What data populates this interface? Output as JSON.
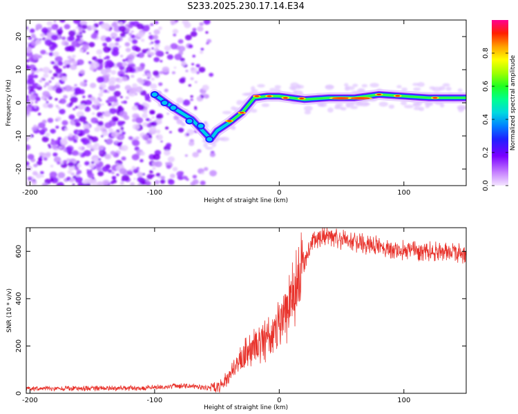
{
  "title": "S233.2025.230.17.14.E34",
  "chart_data": [
    {
      "type": "heatmap",
      "title": "S233.2025.230.17.14.E34",
      "xlabel": "Height of straight line (km)",
      "ylabel": "Frequency (Hz)",
      "xlim": [
        -203,
        150
      ],
      "ylim": [
        -25,
        25
      ],
      "xticks": [
        -200,
        -100,
        0,
        100
      ],
      "yticks": [
        -20,
        -10,
        0,
        10,
        20
      ],
      "colorbar": {
        "label": "Normalized spectral amplitude",
        "range": [
          0,
          1
        ],
        "ticks": [
          0.0,
          0.2,
          0.4,
          0.6,
          0.8
        ]
      },
      "ridge": {
        "description_points_x": [
          -100,
          -85,
          -70,
          -60,
          -55,
          -50,
          -40,
          -30,
          -20,
          -10,
          0,
          20,
          40,
          60,
          80,
          100,
          120,
          150
        ],
        "frequency_hz": [
          2.5,
          -1.5,
          -5,
          -9,
          -11,
          -8.5,
          -6,
          -3,
          1.5,
          2,
          2,
          1,
          1.5,
          1.5,
          2.5,
          2,
          1.5,
          1.5
        ]
      }
    },
    {
      "type": "line",
      "xlabel": "Height of straight line (km)",
      "ylabel": "SNR (10 * v/v)",
      "xlim": [
        -203,
        150
      ],
      "ylim": [
        0,
        700
      ],
      "xticks": [
        -200,
        -100,
        0,
        100
      ],
      "yticks": [
        0,
        200,
        400,
        600
      ],
      "color": "#e8312a",
      "series": [
        {
          "name": "SNR",
          "x": [
            -203,
            -180,
            -160,
            -140,
            -120,
            -100,
            -90,
            -80,
            -70,
            -60,
            -50,
            -45,
            -40,
            -35,
            -30,
            -25,
            -20,
            -15,
            -10,
            -5,
            0,
            5,
            10,
            15,
            20,
            25,
            30,
            35,
            40,
            50,
            60,
            70,
            80,
            90,
            100,
            110,
            120,
            130,
            140,
            150
          ],
          "y": [
            20,
            20,
            20,
            20,
            22,
            25,
            28,
            32,
            30,
            25,
            20,
            40,
            70,
            110,
            150,
            180,
            190,
            200,
            230,
            260,
            280,
            330,
            400,
            470,
            560,
            620,
            650,
            660,
            670,
            650,
            640,
            630,
            620,
            610,
            605,
            600,
            600,
            600,
            595,
            590
          ]
        }
      ]
    }
  ]
}
